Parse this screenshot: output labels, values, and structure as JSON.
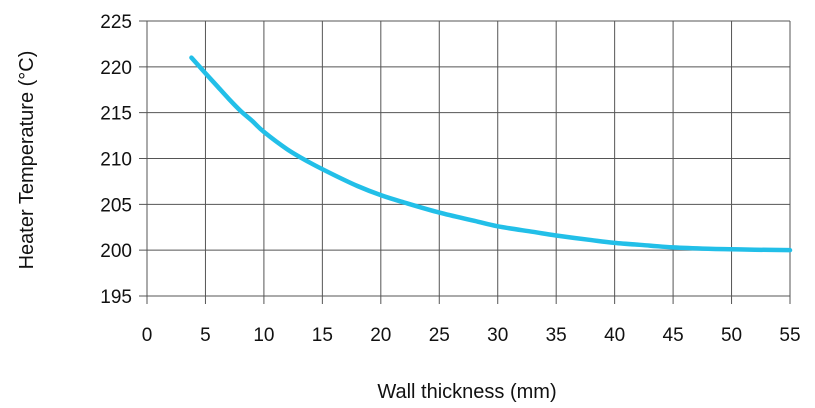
{
  "chart_data": {
    "type": "line",
    "title": "",
    "xlabel": "Wall thickness (mm)",
    "ylabel": "Heater Temperature (°C)",
    "xlim": [
      0,
      55
    ],
    "ylim": [
      195,
      225
    ],
    "x_ticks": [
      "0",
      "5",
      "10",
      "15",
      "20",
      "25",
      "30",
      "35",
      "40",
      "45",
      "50",
      "55"
    ],
    "y_ticks": [
      "195",
      "200",
      "205",
      "210",
      "215",
      "220",
      "225"
    ],
    "grid": true,
    "series_color": "#22bfe8",
    "series": [
      {
        "x": [
          3.8,
          5,
          6,
          7,
          8,
          9,
          10,
          12,
          14,
          16,
          18,
          20,
          22,
          25,
          28,
          30,
          33,
          35,
          38,
          40,
          43,
          45,
          48,
          50,
          52,
          55
        ],
        "y": [
          221.0,
          219.3,
          217.9,
          216.5,
          215.2,
          214.1,
          212.9,
          211.0,
          209.5,
          208.2,
          207.0,
          206.0,
          205.2,
          204.1,
          203.2,
          202.6,
          202.0,
          201.6,
          201.1,
          200.8,
          200.5,
          200.3,
          200.15,
          200.1,
          200.05,
          200.0
        ]
      }
    ]
  }
}
